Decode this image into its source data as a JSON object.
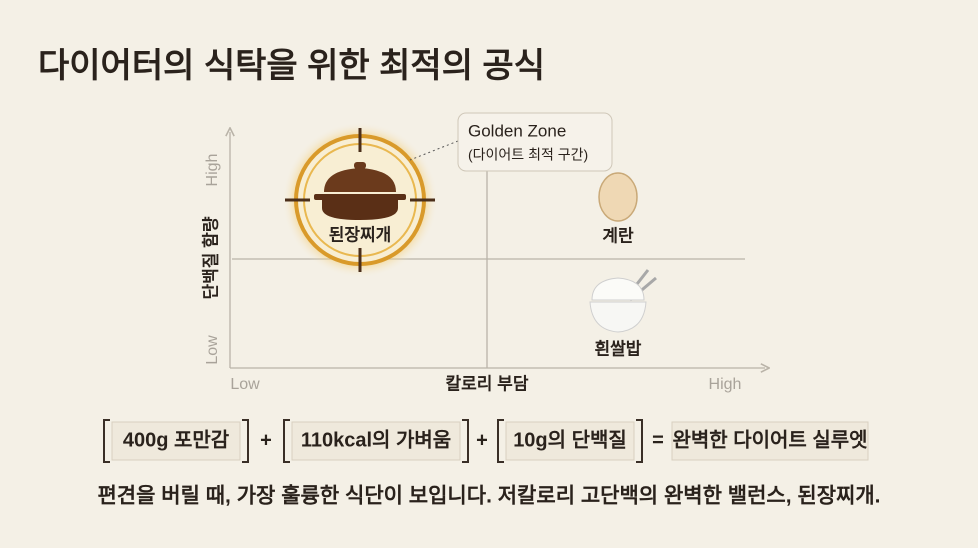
{
  "header": {
    "title": "다이어터의 식탁을 위한 최적의 공식"
  },
  "diagram": {
    "y_axis": {
      "label": "단백질 함량",
      "low": "Low",
      "high": "High"
    },
    "x_axis": {
      "label": "칼로리 부담",
      "low": "Low",
      "high": "High"
    },
    "callout": {
      "title": "Golden Zone",
      "subtitle": "(다이어트 최적 구간)"
    },
    "items": [
      {
        "label": "된장찌개"
      },
      {
        "label": "계란"
      },
      {
        "label": "흰쌀밥"
      }
    ]
  },
  "formula": {
    "terms": [
      "400g 포만감",
      "110kcal의 가벼움",
      "10g의 단백질"
    ],
    "operators": [
      "+",
      "+",
      "="
    ],
    "result": "완벽한 다이어트 실루엣"
  },
  "footer": {
    "text": "편견을 버릴 때, 가장 훌륭한 식단이 보입니다. 저칼로리 고단백의 완벽한 밸런스, 된장찌개."
  }
}
